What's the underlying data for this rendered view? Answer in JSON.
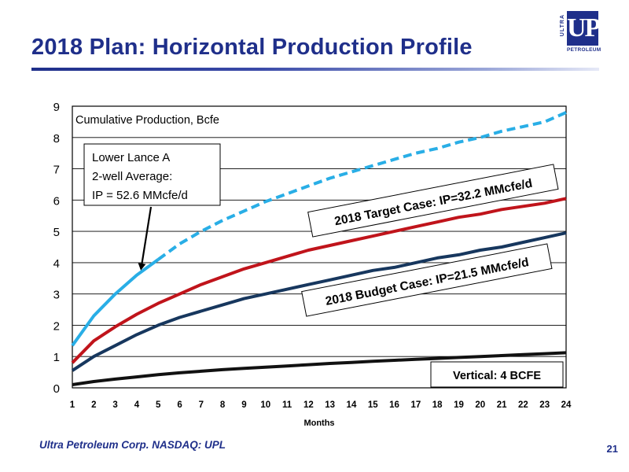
{
  "slide": {
    "title": "2018 Plan:  Horizontal Production Profile",
    "footer": "Ultra Petroleum Corp. NASDAQ: UPL",
    "page_number": "21",
    "accent_color": "#1f2f8a"
  },
  "logo": {
    "side_text": "ULTRA",
    "main_text": "UP",
    "bottom_text": "PETROLEUM"
  },
  "chart_data": {
    "type": "line",
    "title": "Cumulative Production, Bcfe",
    "xlabel": "Months",
    "ylabel": "",
    "x": [
      1,
      2,
      3,
      4,
      5,
      6,
      7,
      8,
      9,
      10,
      11,
      12,
      13,
      14,
      15,
      16,
      17,
      18,
      19,
      20,
      21,
      22,
      23,
      24
    ],
    "xlim": [
      1,
      24
    ],
    "ylim": [
      0,
      9
    ],
    "yticks": [
      0,
      1,
      2,
      3,
      4,
      5,
      6,
      7,
      8,
      9
    ],
    "grid": true,
    "series": [
      {
        "name": "Lower Lance A 2-well Average",
        "color": "#29aee6",
        "style": "solid-then-dashed",
        "dash_from_x": 5,
        "values": [
          1.35,
          2.3,
          3.0,
          3.6,
          4.1,
          4.6,
          5.0,
          5.35,
          5.65,
          5.95,
          6.2,
          6.45,
          6.7,
          6.9,
          7.1,
          7.3,
          7.5,
          7.65,
          7.85,
          8.0,
          8.2,
          8.35,
          8.5,
          8.8
        ]
      },
      {
        "name": "2018 Target Case",
        "color": "#c0141b",
        "style": "solid",
        "values": [
          0.8,
          1.5,
          1.95,
          2.35,
          2.7,
          3.0,
          3.3,
          3.55,
          3.8,
          4.0,
          4.2,
          4.4,
          4.55,
          4.7,
          4.85,
          5.0,
          5.15,
          5.3,
          5.45,
          5.55,
          5.7,
          5.8,
          5.9,
          6.05
        ]
      },
      {
        "name": "2018 Budget Case",
        "color": "#17375e",
        "style": "solid",
        "values": [
          0.55,
          1.0,
          1.35,
          1.7,
          2.0,
          2.25,
          2.45,
          2.65,
          2.85,
          3.0,
          3.15,
          3.3,
          3.45,
          3.6,
          3.75,
          3.85,
          4.0,
          4.15,
          4.25,
          4.4,
          4.5,
          4.65,
          4.8,
          4.95
        ]
      },
      {
        "name": "Vertical",
        "color": "#111111",
        "style": "solid",
        "values": [
          0.1,
          0.2,
          0.28,
          0.35,
          0.42,
          0.48,
          0.53,
          0.58,
          0.62,
          0.66,
          0.7,
          0.74,
          0.78,
          0.81,
          0.85,
          0.88,
          0.91,
          0.94,
          0.97,
          1.0,
          1.03,
          1.06,
          1.09,
          1.12
        ]
      }
    ],
    "annotations": [
      {
        "id": "lower-lance",
        "lines": [
          "Lower Lance A",
          "2-well Average:",
          "IP = 52.6 MMcfe/d"
        ],
        "arrow_to": [
          4.2,
          3.8
        ]
      },
      {
        "id": "target-case",
        "lines": [
          "2018 Target Case:  IP=32.2 MMcfe/d"
        ]
      },
      {
        "id": "budget-case",
        "lines": [
          "2018 Budget Case:  IP=21.5 MMcfe/d"
        ]
      },
      {
        "id": "vertical",
        "lines": [
          "Vertical: 4 BCFE"
        ]
      }
    ]
  }
}
